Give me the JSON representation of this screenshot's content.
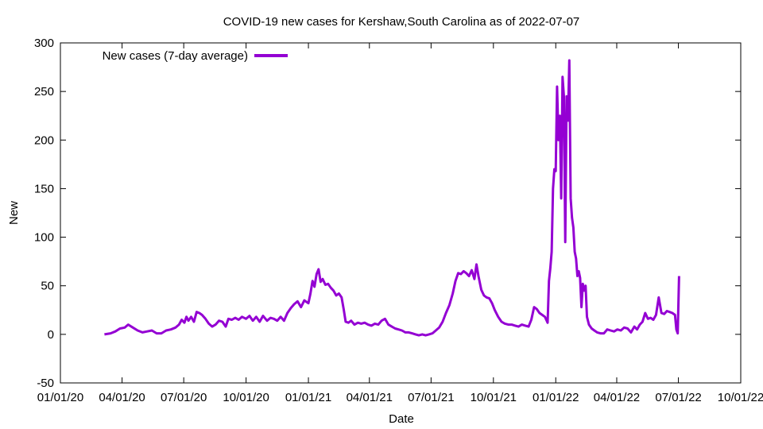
{
  "chart_data": {
    "type": "line",
    "title": "COVID-19 new cases for Kershaw,South Carolina as of 2022-07-07",
    "xlabel": "Date",
    "ylabel": "New",
    "ylim": [
      -50,
      300
    ],
    "yticks": [
      -50,
      0,
      50,
      100,
      150,
      200,
      250,
      300
    ],
    "xlim": [
      "2020-01-01",
      "2022-10-01"
    ],
    "xticks": [
      {
        "date": "2020-01-01",
        "label": "01/01/20"
      },
      {
        "date": "2020-04-01",
        "label": "04/01/20"
      },
      {
        "date": "2020-07-01",
        "label": "07/01/20"
      },
      {
        "date": "2020-10-01",
        "label": "10/01/20"
      },
      {
        "date": "2021-01-01",
        "label": "01/01/21"
      },
      {
        "date": "2021-04-01",
        "label": "04/01/21"
      },
      {
        "date": "2021-07-01",
        "label": "07/01/21"
      },
      {
        "date": "2021-10-01",
        "label": "10/01/21"
      },
      {
        "date": "2022-01-01",
        "label": "01/01/22"
      },
      {
        "date": "2022-04-01",
        "label": "04/01/22"
      },
      {
        "date": "2022-07-01",
        "label": "07/01/22"
      },
      {
        "date": "2022-10-01",
        "label": "10/01/22"
      }
    ],
    "grid": false,
    "legend": "top-left",
    "series": [
      {
        "name": "New cases (7-day average)",
        "color": "#9400d3",
        "points": [
          [
            "2020-03-06",
            0
          ],
          [
            "2020-03-15",
            1
          ],
          [
            "2020-03-22",
            3
          ],
          [
            "2020-03-29",
            6
          ],
          [
            "2020-04-05",
            7
          ],
          [
            "2020-04-10",
            10
          ],
          [
            "2020-04-17",
            7
          ],
          [
            "2020-04-24",
            4
          ],
          [
            "2020-05-01",
            2
          ],
          [
            "2020-05-08",
            3
          ],
          [
            "2020-05-15",
            4
          ],
          [
            "2020-05-22",
            1
          ],
          [
            "2020-05-29",
            1
          ],
          [
            "2020-06-05",
            4
          ],
          [
            "2020-06-12",
            5
          ],
          [
            "2020-06-19",
            7
          ],
          [
            "2020-06-24",
            10
          ],
          [
            "2020-06-28",
            15
          ],
          [
            "2020-07-02",
            12
          ],
          [
            "2020-07-05",
            18
          ],
          [
            "2020-07-08",
            14
          ],
          [
            "2020-07-12",
            18
          ],
          [
            "2020-07-16",
            13
          ],
          [
            "2020-07-20",
            23
          ],
          [
            "2020-07-24",
            22
          ],
          [
            "2020-07-28",
            20
          ],
          [
            "2020-08-02",
            16
          ],
          [
            "2020-08-07",
            11
          ],
          [
            "2020-08-12",
            8
          ],
          [
            "2020-08-17",
            10
          ],
          [
            "2020-08-22",
            14
          ],
          [
            "2020-08-27",
            13
          ],
          [
            "2020-09-01",
            8
          ],
          [
            "2020-09-05",
            16
          ],
          [
            "2020-09-10",
            15
          ],
          [
            "2020-09-15",
            17
          ],
          [
            "2020-09-20",
            15
          ],
          [
            "2020-09-25",
            18
          ],
          [
            "2020-10-01",
            16
          ],
          [
            "2020-10-06",
            19
          ],
          [
            "2020-10-11",
            14
          ],
          [
            "2020-10-16",
            18
          ],
          [
            "2020-10-21",
            13
          ],
          [
            "2020-10-26",
            19
          ],
          [
            "2020-11-01",
            14
          ],
          [
            "2020-11-06",
            17
          ],
          [
            "2020-11-11",
            16
          ],
          [
            "2020-11-16",
            14
          ],
          [
            "2020-11-21",
            18
          ],
          [
            "2020-11-26",
            14
          ],
          [
            "2020-12-01",
            22
          ],
          [
            "2020-12-06",
            27
          ],
          [
            "2020-12-11",
            31
          ],
          [
            "2020-12-16",
            34
          ],
          [
            "2020-12-21",
            28
          ],
          [
            "2020-12-26",
            35
          ],
          [
            "2021-01-01",
            32
          ],
          [
            "2021-01-04",
            42
          ],
          [
            "2021-01-07",
            55
          ],
          [
            "2021-01-10",
            49
          ],
          [
            "2021-01-13",
            62
          ],
          [
            "2021-01-16",
            67
          ],
          [
            "2021-01-19",
            54
          ],
          [
            "2021-01-22",
            57
          ],
          [
            "2021-01-26",
            51
          ],
          [
            "2021-01-30",
            52
          ],
          [
            "2021-02-03",
            48
          ],
          [
            "2021-02-07",
            45
          ],
          [
            "2021-02-11",
            40
          ],
          [
            "2021-02-15",
            42
          ],
          [
            "2021-02-19",
            38
          ],
          [
            "2021-02-22",
            26
          ],
          [
            "2021-02-25",
            13
          ],
          [
            "2021-03-01",
            12
          ],
          [
            "2021-03-05",
            14
          ],
          [
            "2021-03-10",
            10
          ],
          [
            "2021-03-15",
            12
          ],
          [
            "2021-03-20",
            11
          ],
          [
            "2021-03-25",
            12
          ],
          [
            "2021-03-30",
            10
          ],
          [
            "2021-04-04",
            9
          ],
          [
            "2021-04-09",
            11
          ],
          [
            "2021-04-14",
            10
          ],
          [
            "2021-04-19",
            14
          ],
          [
            "2021-04-24",
            16
          ],
          [
            "2021-04-29",
            10
          ],
          [
            "2021-05-04",
            8
          ],
          [
            "2021-05-09",
            6
          ],
          [
            "2021-05-14",
            5
          ],
          [
            "2021-05-19",
            4
          ],
          [
            "2021-05-24",
            2
          ],
          [
            "2021-05-29",
            2
          ],
          [
            "2021-06-03",
            1
          ],
          [
            "2021-06-08",
            0
          ],
          [
            "2021-06-13",
            -1
          ],
          [
            "2021-06-18",
            0
          ],
          [
            "2021-06-23",
            -1
          ],
          [
            "2021-06-28",
            0
          ],
          [
            "2021-07-03",
            1
          ],
          [
            "2021-07-08",
            4
          ],
          [
            "2021-07-13",
            7
          ],
          [
            "2021-07-18",
            13
          ],
          [
            "2021-07-23",
            22
          ],
          [
            "2021-07-28",
            30
          ],
          [
            "2021-08-02",
            42
          ],
          [
            "2021-08-06",
            55
          ],
          [
            "2021-08-10",
            63
          ],
          [
            "2021-08-14",
            62
          ],
          [
            "2021-08-18",
            65
          ],
          [
            "2021-08-22",
            63
          ],
          [
            "2021-08-26",
            60
          ],
          [
            "2021-08-30",
            66
          ],
          [
            "2021-09-03",
            57
          ],
          [
            "2021-09-06",
            72
          ],
          [
            "2021-09-09",
            60
          ],
          [
            "2021-09-13",
            46
          ],
          [
            "2021-09-17",
            40
          ],
          [
            "2021-09-21",
            38
          ],
          [
            "2021-09-25",
            37
          ],
          [
            "2021-09-29",
            32
          ],
          [
            "2021-10-03",
            25
          ],
          [
            "2021-10-08",
            18
          ],
          [
            "2021-10-13",
            13
          ],
          [
            "2021-10-18",
            11
          ],
          [
            "2021-10-23",
            10
          ],
          [
            "2021-10-28",
            10
          ],
          [
            "2021-11-02",
            9
          ],
          [
            "2021-11-07",
            8
          ],
          [
            "2021-11-12",
            10
          ],
          [
            "2021-11-17",
            9
          ],
          [
            "2021-11-22",
            8
          ],
          [
            "2021-11-26",
            15
          ],
          [
            "2021-11-30",
            28
          ],
          [
            "2021-12-04",
            26
          ],
          [
            "2021-12-08",
            22
          ],
          [
            "2021-12-12",
            20
          ],
          [
            "2021-12-16",
            18
          ],
          [
            "2021-12-20",
            12
          ],
          [
            "2021-12-22",
            55
          ],
          [
            "2021-12-24",
            68
          ],
          [
            "2021-12-26",
            85
          ],
          [
            "2021-12-28",
            150
          ],
          [
            "2021-12-30",
            170
          ],
          [
            "2022-01-01",
            168
          ],
          [
            "2022-01-03",
            255
          ],
          [
            "2022-01-05",
            200
          ],
          [
            "2022-01-07",
            225
          ],
          [
            "2022-01-09",
            140
          ],
          [
            "2022-01-11",
            265
          ],
          [
            "2022-01-13",
            245
          ],
          [
            "2022-01-15",
            95
          ],
          [
            "2022-01-17",
            245
          ],
          [
            "2022-01-19",
            220
          ],
          [
            "2022-01-21",
            282
          ],
          [
            "2022-01-23",
            140
          ],
          [
            "2022-01-25",
            120
          ],
          [
            "2022-01-27",
            110
          ],
          [
            "2022-01-29",
            85
          ],
          [
            "2022-01-31",
            78
          ],
          [
            "2022-02-02",
            60
          ],
          [
            "2022-02-04",
            65
          ],
          [
            "2022-02-06",
            58
          ],
          [
            "2022-02-08",
            28
          ],
          [
            "2022-02-10",
            52
          ],
          [
            "2022-02-12",
            45
          ],
          [
            "2022-02-14",
            50
          ],
          [
            "2022-02-16",
            18
          ],
          [
            "2022-02-19",
            10
          ],
          [
            "2022-02-23",
            6
          ],
          [
            "2022-02-27",
            4
          ],
          [
            "2022-03-03",
            2
          ],
          [
            "2022-03-08",
            1
          ],
          [
            "2022-03-13",
            1
          ],
          [
            "2022-03-18",
            5
          ],
          [
            "2022-03-23",
            4
          ],
          [
            "2022-03-28",
            3
          ],
          [
            "2022-04-02",
            5
          ],
          [
            "2022-04-07",
            4
          ],
          [
            "2022-04-12",
            7
          ],
          [
            "2022-04-17",
            6
          ],
          [
            "2022-04-22",
            2
          ],
          [
            "2022-04-27",
            8
          ],
          [
            "2022-05-01",
            5
          ],
          [
            "2022-05-05",
            10
          ],
          [
            "2022-05-09",
            13
          ],
          [
            "2022-05-13",
            22
          ],
          [
            "2022-05-17",
            16
          ],
          [
            "2022-05-21",
            17
          ],
          [
            "2022-05-25",
            15
          ],
          [
            "2022-05-29",
            20
          ],
          [
            "2022-06-02",
            38
          ],
          [
            "2022-06-06",
            22
          ],
          [
            "2022-06-10",
            21
          ],
          [
            "2022-06-14",
            24
          ],
          [
            "2022-06-18",
            23
          ],
          [
            "2022-06-22",
            22
          ],
          [
            "2022-06-26",
            20
          ],
          [
            "2022-06-28",
            5
          ],
          [
            "2022-06-30",
            1
          ],
          [
            "2022-07-02",
            60
          ]
        ]
      }
    ]
  }
}
